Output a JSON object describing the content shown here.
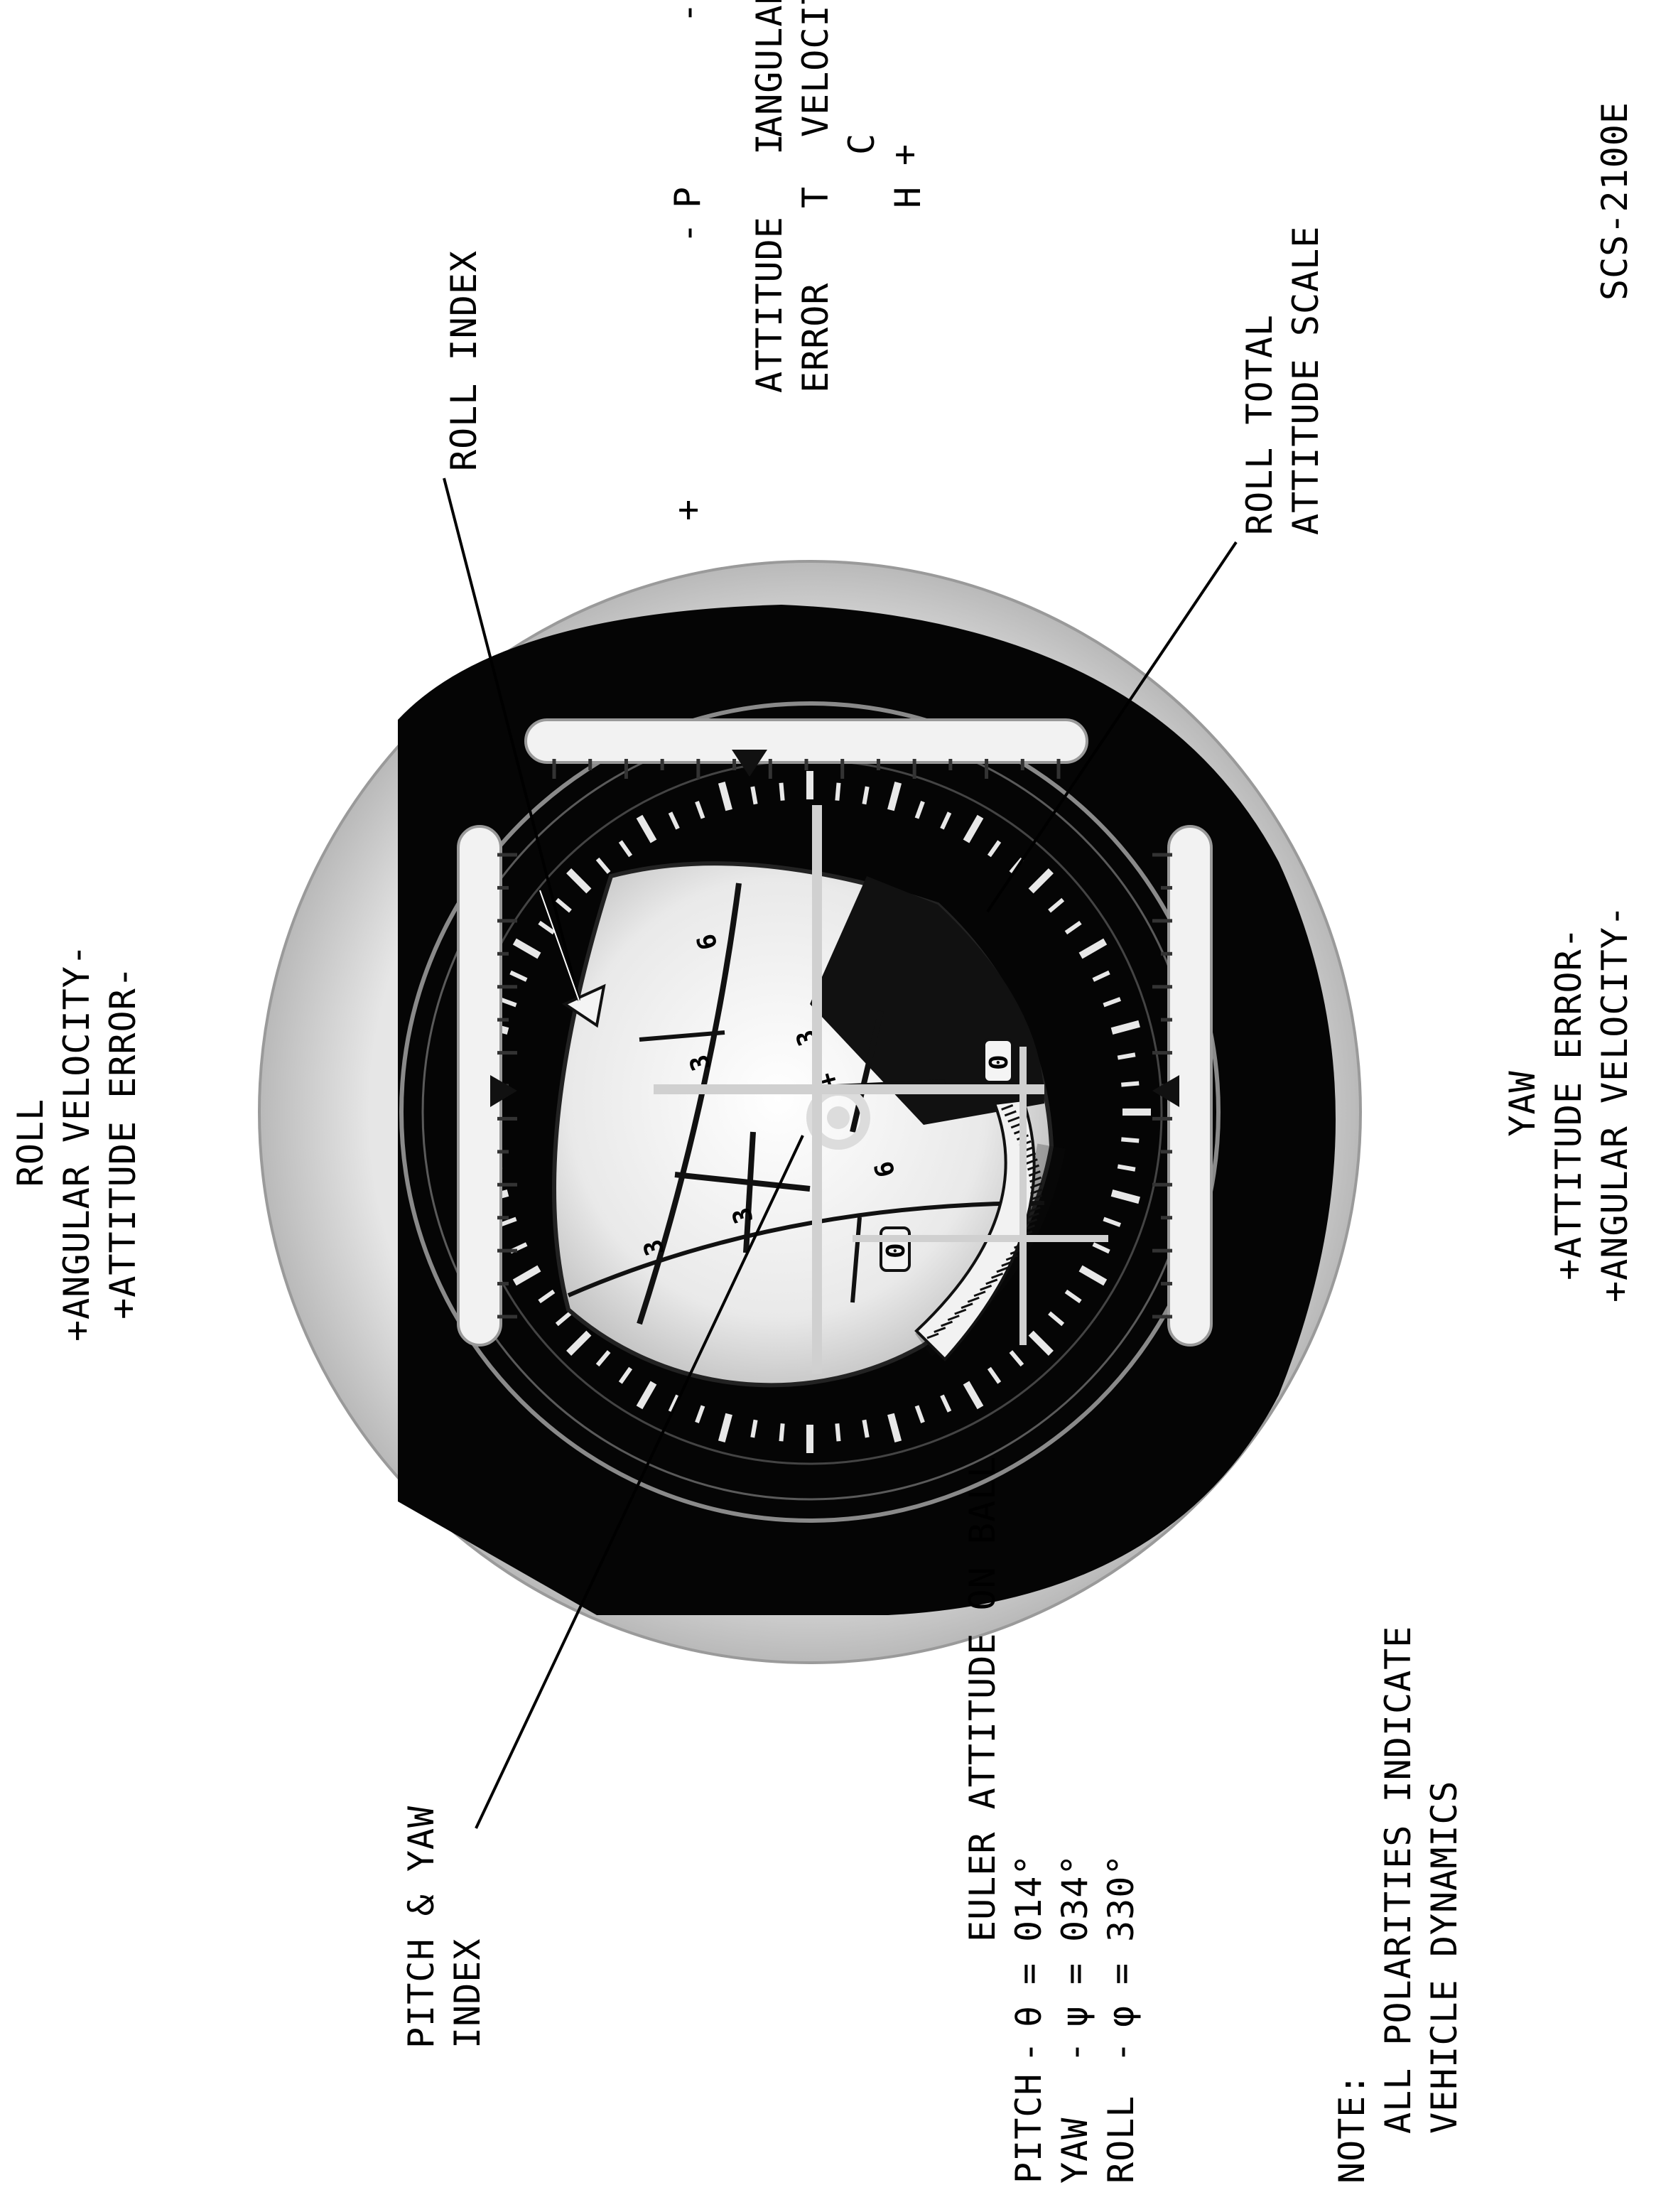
{
  "labels": {
    "roll_index": "ROLL INDEX",
    "roll_total_line1": "ROLL TOTAL",
    "roll_total_line2": "ATTITUDE SCALE",
    "pitch_yaw_line1": "PITCH & YAW",
    "pitch_yaw_line2": "INDEX",
    "figure_id": "SCS-2100E"
  },
  "roll_panel": {
    "title": "ROLL",
    "line1": "+ANGULAR VELOCITY-",
    "line2": "+ATTITUDE ERROR-"
  },
  "yaw_panel": {
    "title": "YAW",
    "line1": "+ATTITUDE ERROR-",
    "line2": "+ANGULAR VELOCITY-"
  },
  "pitch_panel": {
    "letters": [
      "P",
      "I",
      "T",
      "C",
      "H"
    ],
    "attitude_line1": "ATTITUDE",
    "attitude_line2": "ERROR",
    "velocity_line1": "ANGULAR",
    "velocity_line2": "VELOCITY",
    "minus": "-",
    "plus": "+"
  },
  "euler": {
    "title": "EULER ATTITUDE ON BALL",
    "rows": [
      {
        "axis": "PITCH",
        "sep": "-",
        "symbol": "θ",
        "eq": "=",
        "value": "014°"
      },
      {
        "axis": "YAW",
        "sep": "-",
        "symbol": "ψ",
        "eq": "=",
        "value": "034°"
      },
      {
        "axis": "ROLL",
        "sep": "-",
        "symbol": "φ",
        "eq": "=",
        "value": "330°"
      }
    ]
  },
  "note": {
    "heading": "NOTE:",
    "line1": "ALL POLARITIES INDICATE",
    "line2": "VEHICLE DYNAMICS"
  },
  "ball_markings": {
    "digits": [
      "3",
      "3",
      "3",
      "3",
      "6",
      "6",
      "0",
      "0"
    ],
    "plus": "+"
  },
  "colors": {
    "face": "#000000",
    "bezel": "#d6d6d6",
    "ball": "#eeeeee",
    "scale": "#f2f2f2",
    "ink": "#000000"
  }
}
